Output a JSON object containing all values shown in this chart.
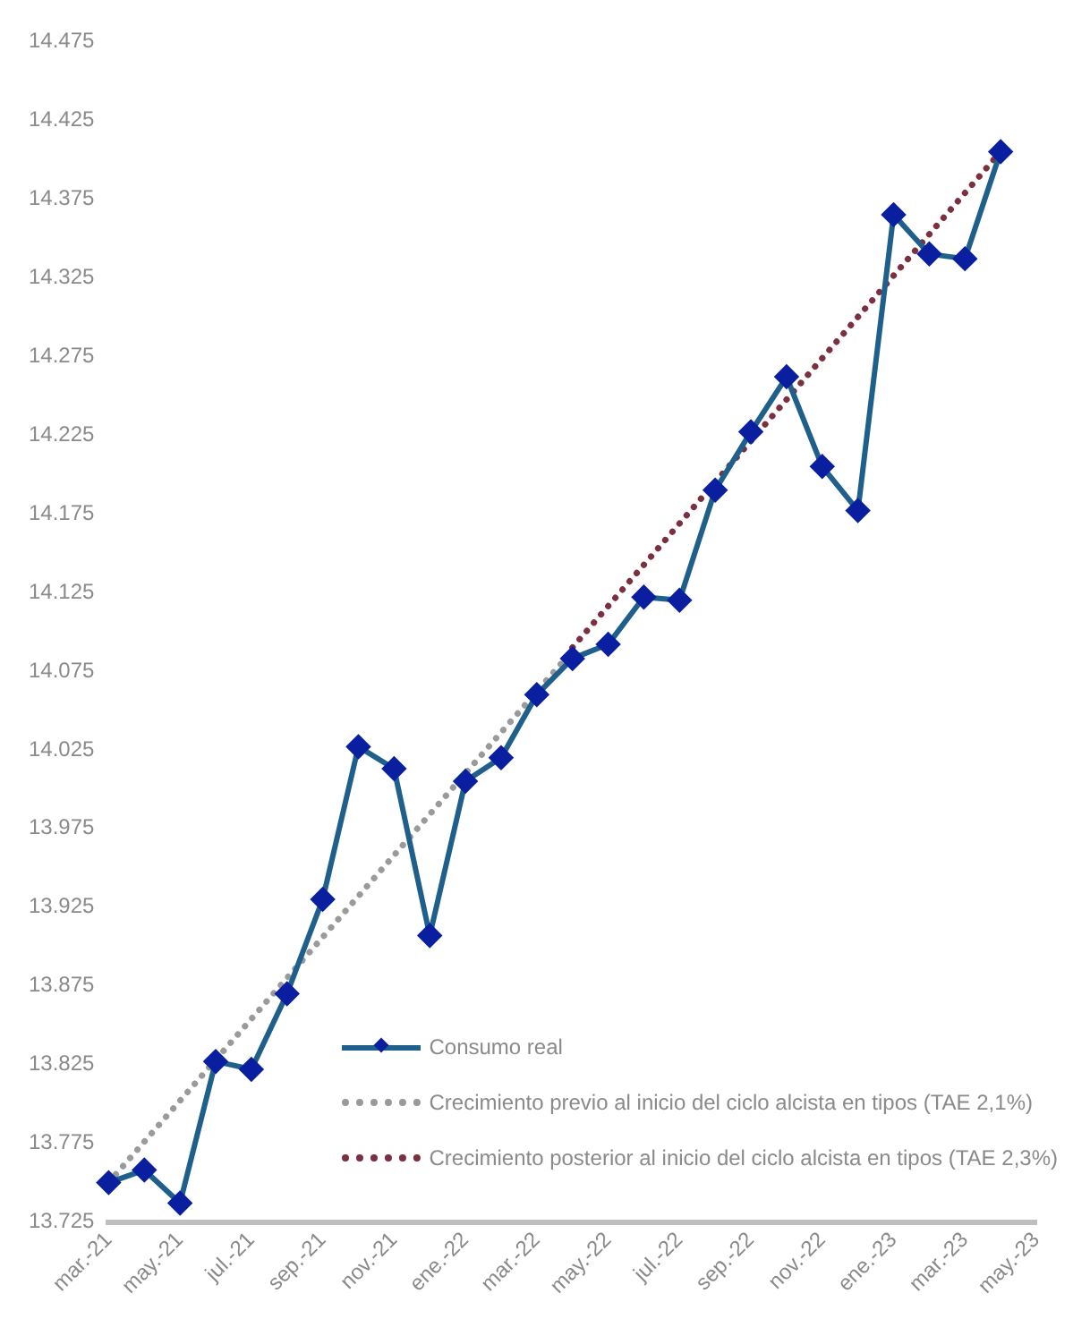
{
  "chart_data": {
    "type": "line",
    "categories": [
      "mar.-21",
      null,
      "may.-21",
      null,
      "jul.-21",
      null,
      "sep.-21",
      null,
      "nov.-21",
      null,
      "ene.-22",
      null,
      "mar.-22",
      null,
      "may.-22",
      null,
      "jul.-22",
      null,
      "sep.-22",
      null,
      "nov.-22",
      null,
      "ene.-23",
      null,
      "mar.-23",
      null,
      "may.-23"
    ],
    "series": [
      {
        "name": "Consumo real",
        "color": "#1f5f8b",
        "marker": "diamond",
        "line_style": "solid",
        "values": [
          13750,
          13758,
          13737,
          13827,
          13822,
          13870,
          13930,
          14027,
          14013,
          13907,
          14005,
          14020,
          14060,
          14083,
          14092,
          14122,
          14120,
          14190,
          14227,
          14262,
          14205,
          14177,
          14365,
          14340,
          14337,
          14405,
          null
        ]
      },
      {
        "name": "Crecimiento previo al inicio del ciclo alcista en tipos (TAE 2,1%)",
        "color": "#9a9a9a",
        "marker": "none",
        "line_style": "dotted",
        "values": [
          13750,
          null,
          null,
          null,
          null,
          null,
          null,
          null,
          null,
          null,
          null,
          null,
          null,
          14088,
          null,
          null,
          null,
          null,
          null,
          null,
          null,
          null,
          null,
          null,
          null,
          null,
          null
        ]
      },
      {
        "name": "Crecimiento posterior al inicio del ciclo alcista en tipos (TAE 2,3%)",
        "color": "#7b3040",
        "marker": "none",
        "line_style": "dotted",
        "values": [
          null,
          null,
          null,
          null,
          null,
          null,
          null,
          null,
          null,
          null,
          null,
          null,
          null,
          14090,
          null,
          null,
          null,
          null,
          null,
          null,
          null,
          null,
          null,
          null,
          null,
          14405,
          null
        ]
      }
    ],
    "ylim": [
      13725,
      14475
    ],
    "yticks": [
      {
        "value": 13725,
        "label": "13.725"
      },
      {
        "value": 13775,
        "label": "13.775"
      },
      {
        "value": 13825,
        "label": "13.825"
      },
      {
        "value": 13875,
        "label": "13.875"
      },
      {
        "value": 13925,
        "label": "13.925"
      },
      {
        "value": 13975,
        "label": "13.975"
      },
      {
        "value": 14025,
        "label": "14.025"
      },
      {
        "value": 14075,
        "label": "14.075"
      },
      {
        "value": 14125,
        "label": "14.125"
      },
      {
        "value": 14175,
        "label": "14.175"
      },
      {
        "value": 14225,
        "label": "14.225"
      },
      {
        "value": 14275,
        "label": "14.275"
      },
      {
        "value": 14325,
        "label": "14.325"
      },
      {
        "value": 14375,
        "label": "14.375"
      },
      {
        "value": 14425,
        "label": "14.425"
      },
      {
        "value": 14475,
        "label": "14.475"
      }
    ],
    "grid": false,
    "legend": "bottom right"
  }
}
